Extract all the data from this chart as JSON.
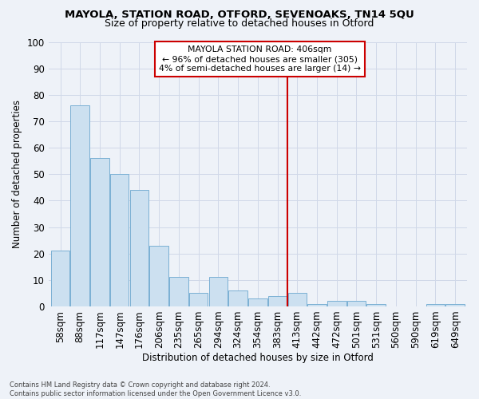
{
  "title": "MAYOLA, STATION ROAD, OTFORD, SEVENOAKS, TN14 5QU",
  "subtitle": "Size of property relative to detached houses in Otford",
  "xlabel": "Distribution of detached houses by size in Otford",
  "ylabel": "Number of detached properties",
  "categories": [
    "58sqm",
    "88sqm",
    "117sqm",
    "147sqm",
    "176sqm",
    "206sqm",
    "235sqm",
    "265sqm",
    "294sqm",
    "324sqm",
    "354sqm",
    "383sqm",
    "413sqm",
    "442sqm",
    "472sqm",
    "501sqm",
    "531sqm",
    "560sqm",
    "590sqm",
    "619sqm",
    "649sqm"
  ],
  "values": [
    21,
    76,
    56,
    50,
    44,
    23,
    11,
    5,
    11,
    6,
    3,
    4,
    5,
    1,
    2,
    2,
    1,
    0,
    0,
    1,
    1
  ],
  "bar_color": "#cce0f0",
  "bar_edge_color": "#7ab0d4",
  "annotation_label": "MAYOLA STATION ROAD: 406sqm",
  "annotation_line1": "← 96% of detached houses are smaller (305)",
  "annotation_line2": "4% of semi-detached houses are larger (14) →",
  "annotation_box_color": "#cc0000",
  "vline_color": "#cc0000",
  "grid_color": "#d0d8e8",
  "background_color": "#eef2f8",
  "footer_text": "Contains HM Land Registry data © Crown copyright and database right 2024.\nContains public sector information licensed under the Open Government Licence v3.0.",
  "ylim": [
    0,
    100
  ],
  "yticks": [
    0,
    10,
    20,
    30,
    40,
    50,
    60,
    70,
    80,
    90,
    100
  ],
  "vline_idx": 12
}
